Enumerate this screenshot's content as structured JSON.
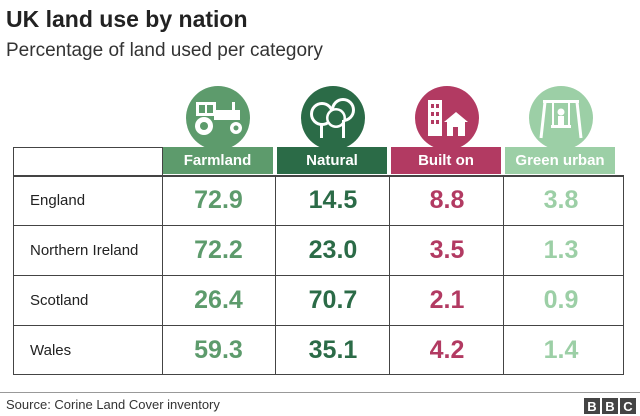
{
  "header": {
    "title": "UK land use by nation",
    "subtitle": "Percentage of land used per category"
  },
  "table": {
    "columns": [
      "Farmland",
      "Natural",
      "Built on",
      "Green urban"
    ],
    "rows": [
      [
        "England",
        "72.9",
        "14.5",
        "8.8",
        "3.8"
      ],
      [
        "Northern Ireland",
        "72.2",
        "23.0",
        "3.5",
        "1.3"
      ],
      [
        "Scotland",
        "26.4",
        "70.7",
        "2.1",
        "0.9"
      ],
      [
        "Wales",
        "59.3",
        "35.1",
        "4.2",
        "1.4"
      ]
    ]
  },
  "footer": {
    "source": "Source: Corine Land Cover inventory",
    "logo": [
      "B",
      "B",
      "C"
    ]
  }
}
